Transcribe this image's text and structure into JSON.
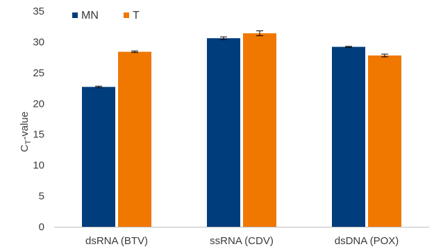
{
  "chart_data": {
    "type": "bar",
    "categories": [
      "dsRNA (BTV)",
      "ssRNA (CDV)",
      "dsDNA (POX)"
    ],
    "series": [
      {
        "name": "MN",
        "color": "#003d7c",
        "values": [
          22.7,
          30.6,
          29.2
        ],
        "errors": [
          0.12,
          0.22,
          0.08
        ]
      },
      {
        "name": "T",
        "color": "#f07800",
        "values": [
          28.4,
          31.4,
          27.8
        ],
        "errors": [
          0.12,
          0.4,
          0.22
        ]
      }
    ],
    "ylabel_main": "C",
    "ylabel_sub": "T",
    "ylabel_rest": "-value",
    "ylim": [
      0,
      35
    ],
    "yticks": [
      0,
      5,
      10,
      15,
      20,
      25,
      30,
      35
    ],
    "grid": false,
    "legend": "top-left"
  }
}
